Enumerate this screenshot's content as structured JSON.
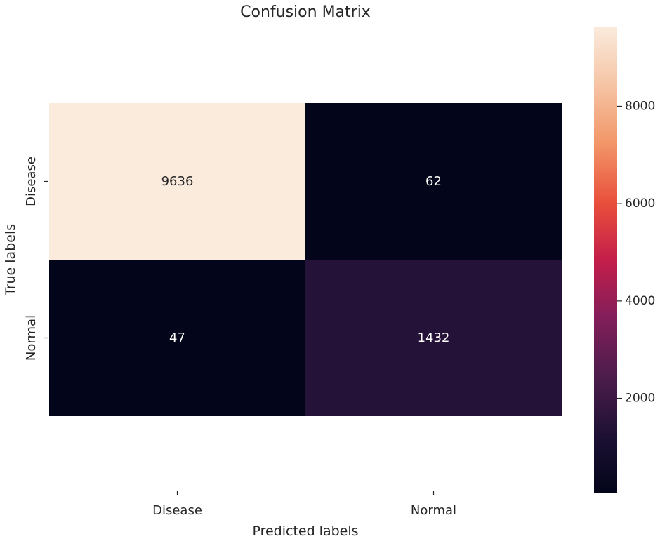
{
  "chart_data": {
    "type": "heatmap",
    "title": "Confusion Matrix",
    "xlabel": "Predicted labels",
    "ylabel": "True labels",
    "x_categories": [
      "Disease",
      "Normal"
    ],
    "y_categories": [
      "Disease",
      "Normal"
    ],
    "values": [
      [
        9636,
        62
      ],
      [
        47,
        1432
      ]
    ],
    "colorbar": {
      "ticks": [
        2000,
        4000,
        6000,
        8000
      ],
      "tick_labels": [
        "2000",
        "4000",
        "6000",
        "8000"
      ],
      "range": [
        47,
        9636
      ],
      "colormap": "rocket"
    },
    "grid": false
  }
}
